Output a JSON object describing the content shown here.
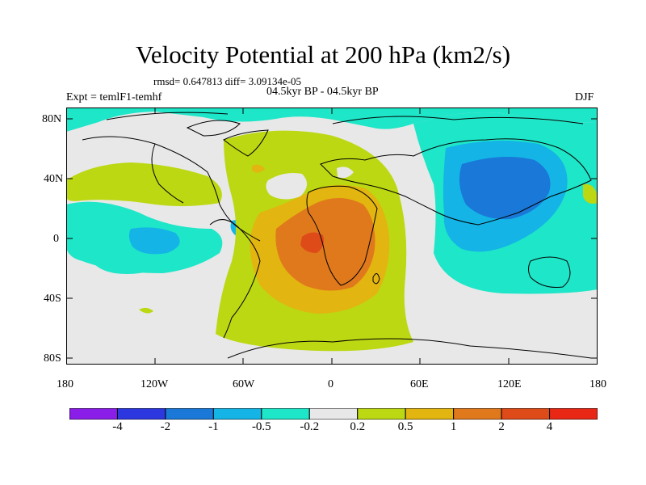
{
  "figure": {
    "title": "Velocity Potential at 200 hPa (km2/s)",
    "stats": "rmsd= 0.647813 diff= 3.09134e-05",
    "experiment": "Expt = temlF1-temhf",
    "period": "04.5kyr BP - 04.5kyr BP",
    "season": "DJF"
  },
  "axes": {
    "x_ticks": [
      "180",
      "120W",
      "60W",
      "0",
      "60E",
      "120E",
      "180"
    ],
    "y_ticks": [
      "80N",
      "40N",
      "0",
      "40S",
      "80S"
    ]
  },
  "colorbar": {
    "labels": [
      "-4",
      "-2",
      "-1",
      "-0.5",
      "-0.2",
      "0.2",
      "0.5",
      "1",
      "2",
      "4"
    ],
    "colors": [
      "#8a1ee8",
      "#2d37e0",
      "#1978d8",
      "#14b4e6",
      "#1ee6c8",
      "#e8e8e8",
      "#bcd812",
      "#e2b510",
      "#e0791c",
      "#de4a18",
      "#e82814"
    ]
  }
}
